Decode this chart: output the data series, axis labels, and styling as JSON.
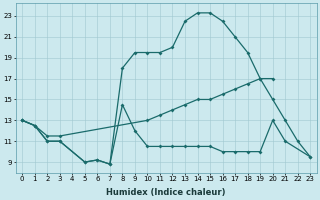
{
  "xlabel": "Humidex (Indice chaleur)",
  "background_color": "#cce9ee",
  "line_color": "#1a6b6b",
  "xlim": [
    -0.5,
    23.5
  ],
  "ylim": [
    8.0,
    24.2
  ],
  "yticks": [
    9,
    11,
    13,
    15,
    17,
    19,
    21,
    23
  ],
  "xticks": [
    0,
    1,
    2,
    3,
    4,
    5,
    6,
    7,
    8,
    9,
    10,
    11,
    12,
    13,
    14,
    15,
    16,
    17,
    18,
    19,
    20,
    21,
    22,
    23
  ],
  "line1_x": [
    0,
    1,
    2,
    3,
    5,
    6,
    7,
    8,
    9,
    10,
    11,
    12,
    13,
    14,
    15,
    16,
    17,
    18,
    19,
    20,
    21,
    23
  ],
  "line1_y": [
    13,
    12.5,
    11,
    11,
    9,
    9.2,
    8.8,
    14.5,
    12,
    10.5,
    10.5,
    10.5,
    10.5,
    10.5,
    10.5,
    10.0,
    10.0,
    10.0,
    10.0,
    13,
    11,
    9.5
  ],
  "line2_x": [
    0,
    1,
    2,
    3,
    10,
    11,
    12,
    13,
    14,
    15,
    16,
    17,
    18,
    19,
    20
  ],
  "line2_y": [
    13,
    12.5,
    11.5,
    11.5,
    13,
    13.5,
    14.0,
    14.5,
    15.0,
    15.0,
    15.5,
    16.0,
    16.5,
    17.0,
    17.0
  ],
  "line3_x": [
    0,
    1,
    2,
    3,
    5,
    6,
    7,
    8,
    9,
    10,
    11,
    12,
    13,
    14,
    15,
    16,
    17,
    18,
    19,
    20,
    21,
    22,
    23
  ],
  "line3_y": [
    13,
    12.5,
    11,
    11,
    9,
    9.2,
    8.8,
    18.0,
    19.5,
    19.5,
    19.5,
    20.0,
    22.5,
    23.3,
    23.3,
    22.5,
    21.0,
    19.5,
    17.0,
    15.0,
    13.0,
    11.0,
    9.5
  ],
  "xlabel_fontsize": 6,
  "tick_fontsize": 5
}
